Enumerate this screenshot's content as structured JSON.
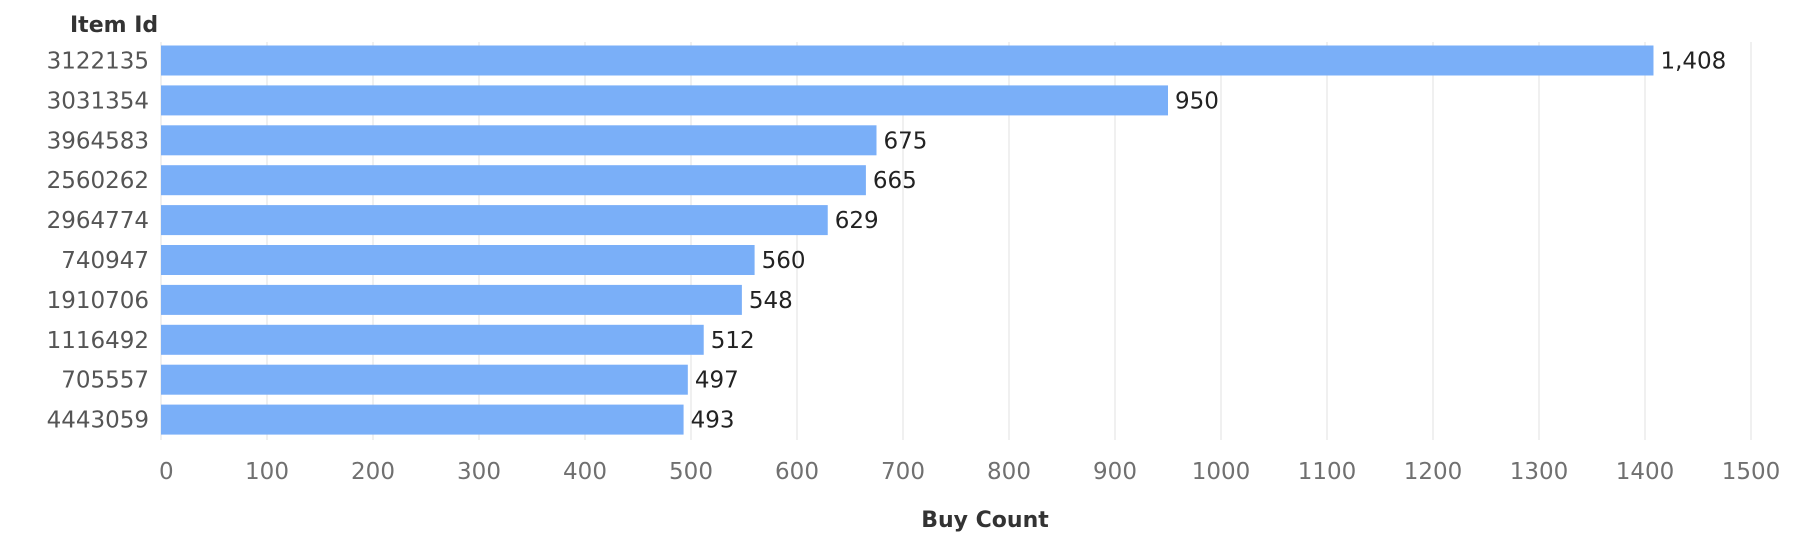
{
  "chart_data": {
    "type": "bar",
    "orientation": "horizontal",
    "xlabel": "Buy Count",
    "ylabel": "Item Id",
    "categories": [
      "3122135",
      "3031354",
      "3964583",
      "2560262",
      "2964774",
      "740947",
      "1910706",
      "1116492",
      "705557",
      "4443059"
    ],
    "values": [
      1408,
      950,
      675,
      665,
      629,
      560,
      548,
      512,
      497,
      493
    ],
    "value_labels": [
      "1,408",
      "950",
      "675",
      "665",
      "629",
      "560",
      "548",
      "512",
      "497",
      "493"
    ],
    "xlim": [
      0,
      1500
    ],
    "xticks": [
      0,
      100,
      200,
      300,
      400,
      500,
      600,
      700,
      800,
      900,
      1000,
      1100,
      1200,
      1300,
      1400,
      1500
    ],
    "bar_color": "#7aaff8",
    "grid": true,
    "legend": false
  }
}
